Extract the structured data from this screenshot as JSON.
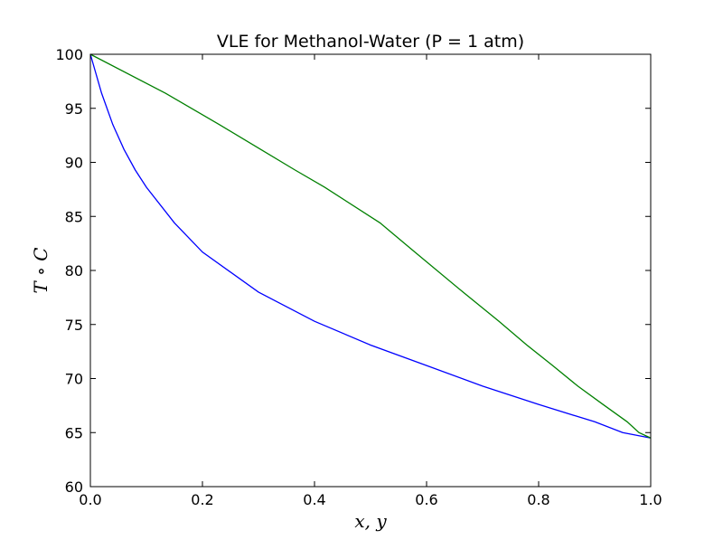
{
  "chart_data": {
    "type": "line",
    "title": "VLE for Methanol-Water (P = 1 atm)",
    "xlabel": "x, y",
    "ylabel": "T ∘ C",
    "xlim": [
      0.0,
      1.0
    ],
    "ylim": [
      60,
      100
    ],
    "xticks": [
      "0.0",
      "0.2",
      "0.4",
      "0.6",
      "0.8",
      "1.0"
    ],
    "yticks": [
      "60",
      "65",
      "70",
      "75",
      "80",
      "85",
      "90",
      "95",
      "100"
    ],
    "grid": false,
    "series": [
      {
        "color": "#0000ff",
        "x": [
          0.0,
          0.02,
          0.04,
          0.06,
          0.08,
          0.1,
          0.15,
          0.2,
          0.3,
          0.4,
          0.5,
          0.6,
          0.7,
          0.8,
          0.9,
          0.95,
          1.0
        ],
        "y": [
          100.0,
          96.4,
          93.5,
          91.2,
          89.3,
          87.7,
          84.4,
          81.7,
          78.0,
          75.3,
          73.1,
          71.2,
          69.3,
          67.6,
          66.0,
          65.0,
          64.5
        ]
      },
      {
        "color": "#008000",
        "x": [
          0.0,
          0.134,
          0.23,
          0.304,
          0.365,
          0.418,
          0.517,
          0.579,
          0.665,
          0.729,
          0.779,
          0.825,
          0.87,
          0.915,
          0.958,
          0.979,
          1.0
        ],
        "y": [
          100.0,
          96.4,
          93.5,
          91.2,
          89.3,
          87.7,
          84.4,
          81.7,
          78.0,
          75.3,
          73.1,
          71.2,
          69.3,
          67.6,
          66.0,
          65.0,
          64.5
        ]
      }
    ]
  }
}
